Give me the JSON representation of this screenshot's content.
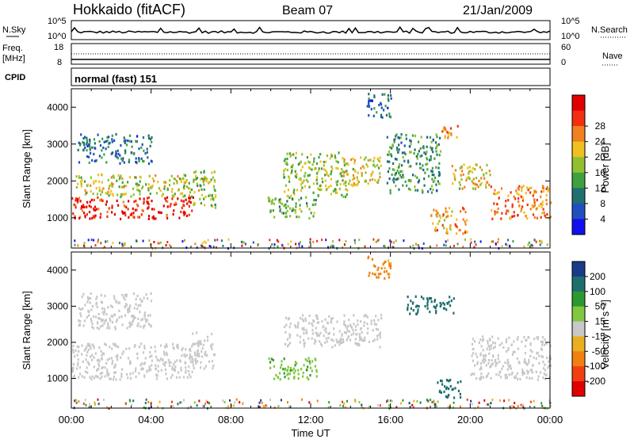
{
  "header": {
    "title": "Hokkaido (fitACF)",
    "beam": "Beam 07",
    "date": "21/Jan/2009"
  },
  "aux": {
    "nsky_label": "N.Sky",
    "nsearch_label": "N.Search",
    "noise_top_label": "10^5",
    "noise_bottom_label": "10^0",
    "noise_right_top": "10^5",
    "noise_right_bottom": "10^0",
    "freq_label": "Freq.",
    "freq_unit": "[MHz]",
    "freq_top": "18",
    "freq_bottom": "8",
    "nave_top": "60",
    "nave_bottom": "0",
    "nave_label": "Nave",
    "cpid_label": "CPID",
    "cpid_text": "normal (fast) 151"
  },
  "chart_data": [
    {
      "type": "heatmap",
      "name": "power",
      "ylabel": "Slant Range [km]",
      "xlabel": "",
      "xticks": [
        "00:00",
        "04:00",
        "08:00",
        "12:00",
        "16:00",
        "20:00",
        "00:00"
      ],
      "xlim": [
        0,
        24
      ],
      "ylim": [
        180,
        4500
      ],
      "yticks": [
        1000,
        2000,
        3000,
        4000
      ],
      "colorbar": {
        "label": "Power [dB]",
        "ticks": [
          "4",
          "8",
          "12",
          "16",
          "20",
          "24",
          "28"
        ],
        "range": [
          0,
          30
        ],
        "colors": [
          "#1010ee",
          "#2050c0",
          "#207070",
          "#40a040",
          "#90c030",
          "#f0c020",
          "#f08020",
          "#f03010",
          "#e00000"
        ]
      },
      "regions": [
        {
          "t0": 0.0,
          "t1": 6.1,
          "r0": 1000,
          "r1": 1600,
          "level": 27
        },
        {
          "t0": 0.2,
          "t1": 6.8,
          "r0": 1600,
          "r1": 2200,
          "level": 16
        },
        {
          "t0": 0.3,
          "t1": 4.0,
          "r0": 2500,
          "r1": 3300,
          "level": 8
        },
        {
          "t0": 6.0,
          "t1": 7.2,
          "r0": 1300,
          "r1": 2300,
          "level": 14
        },
        {
          "t0": 9.8,
          "t1": 12.3,
          "r0": 1000,
          "r1": 1600,
          "level": 12
        },
        {
          "t0": 10.6,
          "t1": 13.8,
          "r0": 1600,
          "r1": 2800,
          "level": 15
        },
        {
          "t0": 13.5,
          "t1": 15.5,
          "r0": 1900,
          "r1": 2700,
          "level": 18
        },
        {
          "t0": 14.8,
          "t1": 16.0,
          "r0": 3700,
          "r1": 4400,
          "level": 7
        },
        {
          "t0": 15.8,
          "t1": 18.5,
          "r0": 1700,
          "r1": 3300,
          "level": 11
        },
        {
          "t0": 18.0,
          "t1": 19.8,
          "r0": 600,
          "r1": 1300,
          "level": 20
        },
        {
          "t0": 18.5,
          "t1": 19.5,
          "r0": 3200,
          "r1": 3600,
          "level": 22
        },
        {
          "t0": 19.0,
          "t1": 21.0,
          "r0": 1800,
          "r1": 2500,
          "level": 18
        },
        {
          "t0": 21.0,
          "t1": 24.0,
          "r0": 1000,
          "r1": 1900,
          "level": 22
        }
      ]
    },
    {
      "type": "heatmap",
      "name": "velocity",
      "ylabel": "Slant Range [km]",
      "xlabel": "Time UT",
      "xticks": [
        "00:00",
        "04:00",
        "08:00",
        "12:00",
        "16:00",
        "20:00",
        "00:00"
      ],
      "xlim": [
        0,
        24
      ],
      "ylim": [
        180,
        4500
      ],
      "yticks": [
        1000,
        2000,
        3000,
        4000
      ],
      "colorbar": {
        "label": "Velocity [m s⁻¹]",
        "ticks": [
          "200",
          "100",
          "50",
          "15",
          "-15",
          "-50",
          "-100",
          "-200"
        ],
        "colors": [
          "#1a3a8a",
          "#1e6e6e",
          "#2a9a30",
          "#80c840",
          "#c8c8c8",
          "#e8b020",
          "#f08010",
          "#f04010",
          "#e00000"
        ]
      },
      "regions": [
        {
          "t0": 0.0,
          "t1": 6.1,
          "r0": 1000,
          "r1": 2000,
          "v": 0
        },
        {
          "t0": 0.3,
          "t1": 4.0,
          "r0": 2400,
          "r1": 3400,
          "v": 0
        },
        {
          "t0": 6.0,
          "t1": 7.2,
          "r0": 1300,
          "r1": 2300,
          "v": 0
        },
        {
          "t0": 9.8,
          "t1": 12.3,
          "r0": 1000,
          "r1": 1600,
          "v": 40
        },
        {
          "t0": 10.6,
          "t1": 15.5,
          "r0": 1900,
          "r1": 2800,
          "v": 0
        },
        {
          "t0": 14.8,
          "t1": 16.0,
          "r0": 3800,
          "r1": 4400,
          "v": -60
        },
        {
          "t0": 16.8,
          "t1": 19.2,
          "r0": 2800,
          "r1": 3300,
          "v": 120
        },
        {
          "t0": 18.2,
          "t1": 19.5,
          "r0": 500,
          "r1": 1000,
          "v": 150
        },
        {
          "t0": 20.0,
          "t1": 24.0,
          "r0": 1000,
          "r1": 2200,
          "v": 0
        }
      ]
    }
  ]
}
